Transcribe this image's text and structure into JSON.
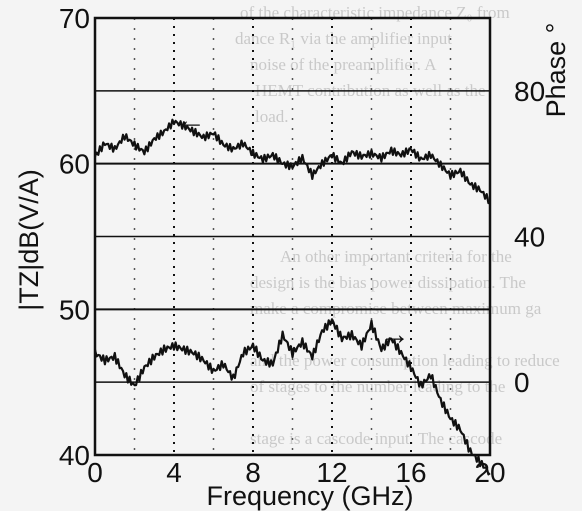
{
  "chart_data": {
    "type": "line",
    "xlabel": "Frequency (GHz)",
    "ylabel_left": "|TZ|dB(V/A)",
    "ylabel_right": "Phase °",
    "xlim": [
      0,
      20
    ],
    "ylim_left": [
      40,
      70
    ],
    "ylim_right": [
      -20,
      100
    ],
    "x_ticks": [
      "0",
      "4",
      "8",
      "12",
      "16",
      "20"
    ],
    "y_ticks_left": [
      "40",
      "50",
      "60",
      "70"
    ],
    "y_ticks_right": [
      "0",
      "40",
      "80"
    ],
    "grid": true,
    "annotations": [
      "←",
      "→"
    ],
    "series": [
      {
        "axis": "left",
        "x": [
          0,
          0.5,
          1,
          1.5,
          2,
          2.5,
          3,
          3.5,
          4,
          4.5,
          5,
          5.5,
          6,
          6.5,
          7,
          7.5,
          8,
          8.5,
          9,
          9.5,
          10,
          10.5,
          11,
          11.5,
          12,
          12.5,
          13,
          13.5,
          14,
          14.5,
          15,
          15.5,
          16,
          16.5,
          17,
          17.5,
          18,
          18.5,
          19,
          19.5,
          20
        ],
        "values": [
          60.5,
          61.4,
          61.0,
          61.9,
          61.3,
          60.8,
          61.7,
          62.2,
          62.9,
          62.6,
          62.2,
          61.8,
          62.1,
          61.3,
          61.0,
          61.4,
          60.7,
          60.3,
          60.6,
          60.0,
          59.8,
          60.4,
          59.2,
          60.0,
          60.6,
          60.0,
          60.8,
          60.5,
          60.7,
          60.4,
          60.9,
          60.6,
          61.0,
          60.3,
          60.6,
          59.9,
          59.2,
          59.5,
          58.6,
          58.2,
          57.4
        ]
      },
      {
        "axis": "right",
        "x": [
          0,
          0.5,
          1,
          1.5,
          2,
          2.5,
          3,
          3.5,
          4,
          4.5,
          5,
          5.5,
          6,
          6.5,
          7,
          7.5,
          8,
          8.5,
          9,
          9.5,
          10,
          10.5,
          11,
          11.5,
          12,
          12.5,
          13,
          13.5,
          14,
          14.5,
          15,
          15.5,
          16,
          16.5,
          17,
          17.5,
          18,
          18.5,
          19,
          19.5,
          20
        ],
        "values": [
          8,
          6,
          7,
          2,
          -1,
          4,
          7,
          9,
          10,
          9,
          8,
          6,
          3,
          5,
          1,
          8,
          10,
          6,
          5,
          13,
          8,
          11,
          7,
          14,
          17,
          12,
          13,
          10,
          16,
          9,
          12,
          8,
          4,
          -1,
          2,
          -5,
          -10,
          -13,
          -19,
          -22,
          -25
        ]
      }
    ]
  }
}
